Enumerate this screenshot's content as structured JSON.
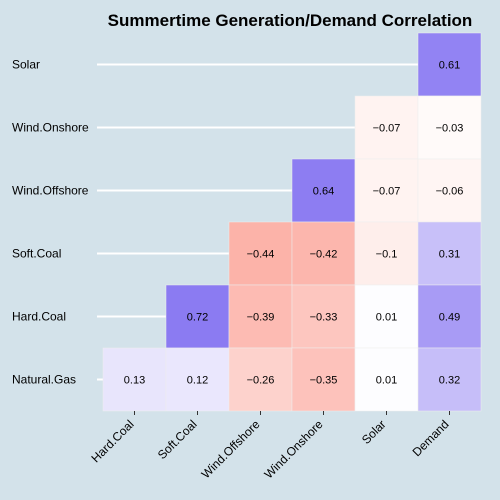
{
  "chart_data": {
    "type": "heatmap",
    "title": "Summertime Generation/Demand Correlation",
    "xlabel": "",
    "ylabel": "",
    "x_categories": [
      "Hard.Coal",
      "Soft.Coal",
      "Wind.Offshore",
      "Wind.Onshore",
      "Solar",
      "Demand"
    ],
    "y_categories": [
      "Solar",
      "Wind.Onshore",
      "Wind.Offshore",
      "Soft.Coal",
      "Hard.Coal",
      "Natural.Gas"
    ],
    "values": [
      [
        null,
        null,
        null,
        null,
        null,
        0.61
      ],
      [
        null,
        null,
        null,
        null,
        -0.07,
        -0.03
      ],
      [
        null,
        null,
        null,
        0.64,
        -0.07,
        -0.06
      ],
      [
        null,
        null,
        -0.44,
        -0.42,
        -0.1,
        0.31
      ],
      [
        null,
        0.72,
        -0.39,
        -0.33,
        0.01,
        0.49
      ],
      [
        0.13,
        0.12,
        -0.26,
        -0.35,
        0.01,
        0.32
      ]
    ],
    "labels": [
      [
        null,
        null,
        null,
        null,
        null,
        "0.61"
      ],
      [
        null,
        null,
        null,
        null,
        "−0.07",
        "−0.03"
      ],
      [
        null,
        null,
        null,
        "0.64",
        "−0.07",
        "−0.06"
      ],
      [
        null,
        null,
        "−0.44",
        "−0.42",
        "−0.1",
        "0.31"
      ],
      [
        null,
        "0.72",
        "−0.39",
        "−0.33",
        "0.01",
        "0.49"
      ],
      [
        "0.13",
        "0.12",
        "−0.26",
        "−0.35",
        "0.01",
        "0.32"
      ]
    ],
    "colors": {
      "background": "#d3e2ea",
      "positive": "#8b7bf2",
      "negative": "#fb8e80",
      "neutral": "#ffffff",
      "grid": "#ffffff"
    }
  }
}
